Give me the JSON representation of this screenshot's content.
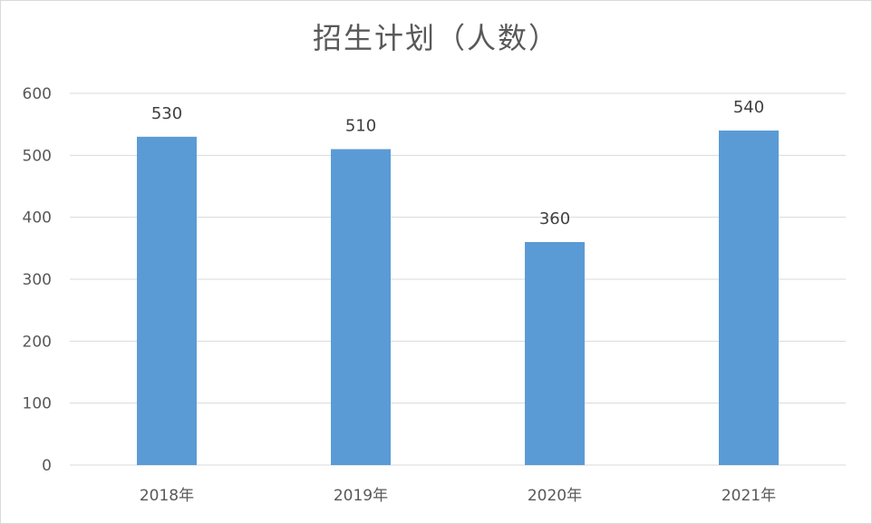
{
  "chart_data": {
    "type": "bar",
    "title": "招生计划（人数）",
    "categories": [
      "2018年",
      "2019年",
      "2020年",
      "2021年"
    ],
    "values": [
      530,
      510,
      360,
      540
    ],
    "data_labels": [
      "530",
      "510",
      "360",
      "540"
    ],
    "ylim": [
      0,
      600
    ],
    "yticks": [
      "0",
      "100",
      "200",
      "300",
      "400",
      "500",
      "600"
    ],
    "grid": true,
    "legend": "none",
    "bar_color": "#5b9bd5"
  }
}
